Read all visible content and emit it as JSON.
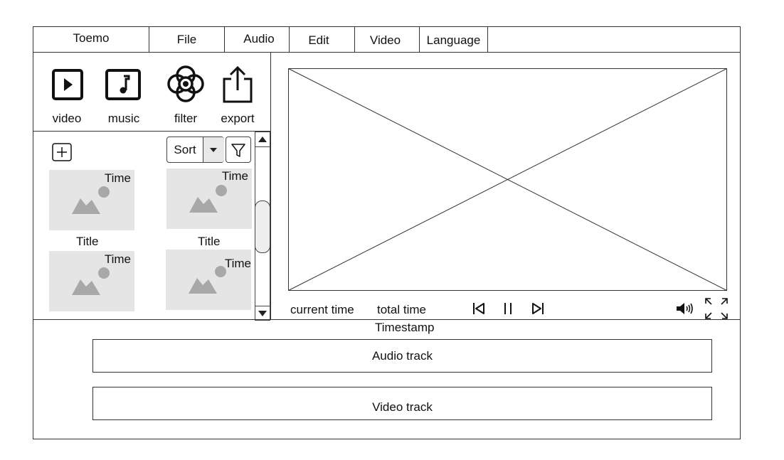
{
  "menu": {
    "items": [
      "Toemo",
      "File",
      "Audio",
      "Edit",
      "Video",
      "Language"
    ]
  },
  "toolbar": {
    "tools": [
      {
        "label": "video",
        "icon": "play-square-icon"
      },
      {
        "label": "music",
        "icon": "music-note-icon"
      },
      {
        "label": "filter",
        "icon": "flower-filter-icon"
      },
      {
        "label": "export",
        "icon": "share-export-icon"
      }
    ]
  },
  "library": {
    "sort_label": "Sort",
    "items": [
      {
        "time": "Time",
        "title": "Title"
      },
      {
        "time": "Time",
        "title": "Title"
      },
      {
        "time": "Time",
        "title": ""
      },
      {
        "time": "Time",
        "title": ""
      }
    ]
  },
  "player": {
    "current_time": "current time",
    "total_time": "total time"
  },
  "timeline": {
    "timestamp_label": "Timestamp",
    "tracks": [
      "Audio track",
      "Video track"
    ]
  }
}
